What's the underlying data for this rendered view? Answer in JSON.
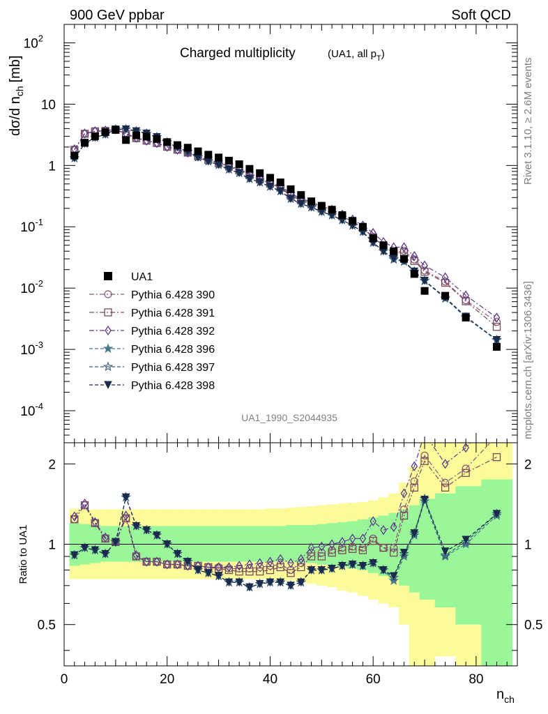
{
  "header": {
    "left": "900 GeV ppbar",
    "right": "Soft QCD"
  },
  "side_labels": {
    "top": "Rivet 3.1.10, ≥ 2.6M events",
    "bottom": "mcplots.cern.ch [arXiv:1306.3436]"
  },
  "colors": {
    "data": "#000000",
    "band_inner": "#99f799",
    "band_outer": "#fbfb99",
    "s390": "#8b5a7a",
    "s391": "#7a4a5a",
    "s392": "#5a3a8a",
    "s396": "#4a7a8a",
    "s397": "#3a5a7a",
    "s398": "#1a2a4a"
  },
  "chart_data": {
    "type": "scatter",
    "title_main": "Charged multiplicity",
    "title_sub": "(UA1, all p",
    "title_sub_subscript": "T",
    "title_sub_close": ")",
    "analysis": "UA1_1990_S2044935",
    "xlabel": "n",
    "xlabel_sub": "ch",
    "ylabel": "dσ/d n",
    "ylabel_sub": "ch",
    "ylabel_unit": "[mb]",
    "ratio_ylabel": "Ratio to UA1",
    "xlim": [
      0,
      88
    ],
    "ylim_main": [
      3e-05,
      200
    ],
    "ylim_ratio": [
      0.35,
      2.4
    ],
    "log_y_main": true,
    "log_y_ratio": true,
    "x_ticks": [
      "0",
      "20",
      "40",
      "60",
      "80"
    ],
    "main_tick_labels": [
      "10",
      "10",
      "10",
      "10",
      "1",
      "10",
      "10"
    ],
    "main_tick_exponents": [
      "-4",
      "-3",
      "-2",
      "-1",
      "",
      "",
      "2"
    ],
    "ratio_tick_labels": [
      "0.5",
      "1",
      "2"
    ],
    "legend_position": "middle-left",
    "x": [
      2,
      4,
      6,
      8,
      10,
      12,
      14,
      16,
      18,
      20,
      22,
      24,
      26,
      28,
      30,
      32,
      34,
      36,
      38,
      40,
      42,
      44,
      46,
      48,
      50,
      52,
      54,
      56,
      58,
      60,
      62,
      64,
      66,
      68,
      70,
      74,
      78,
      84
    ],
    "data": {
      "name": "UA1",
      "values": [
        1.45,
        2.35,
        3.0,
        3.5,
        3.8,
        2.6,
        3.1,
        2.95,
        2.7,
        2.4,
        2.15,
        1.95,
        1.7,
        1.5,
        1.35,
        1.2,
        1.05,
        0.88,
        0.75,
        0.63,
        0.53,
        0.41,
        0.33,
        0.26,
        0.22,
        0.19,
        0.155,
        0.125,
        0.1,
        0.065,
        0.05,
        0.04,
        0.03,
        0.017,
        0.009,
        0.0075,
        0.0033,
        0.0011
      ],
      "band_inner": [
        [
          0.83,
          1.2
        ],
        [
          0.84,
          1.19
        ],
        [
          0.85,
          1.18
        ],
        [
          0.86,
          1.17
        ],
        [
          0.86,
          1.17
        ],
        [
          0.86,
          1.17
        ],
        [
          0.86,
          1.17
        ],
        [
          0.86,
          1.17
        ],
        [
          0.86,
          1.17
        ],
        [
          0.86,
          1.17
        ],
        [
          0.86,
          1.17
        ],
        [
          0.86,
          1.17
        ],
        [
          0.86,
          1.17
        ],
        [
          0.86,
          1.17
        ],
        [
          0.86,
          1.17
        ],
        [
          0.86,
          1.17
        ],
        [
          0.86,
          1.17
        ],
        [
          0.86,
          1.17
        ],
        [
          0.86,
          1.17
        ],
        [
          0.86,
          1.17
        ],
        [
          0.86,
          1.17
        ],
        [
          0.86,
          1.18
        ],
        [
          0.85,
          1.18
        ],
        [
          0.85,
          1.18
        ],
        [
          0.84,
          1.19
        ],
        [
          0.83,
          1.2
        ],
        [
          0.82,
          1.21
        ],
        [
          0.81,
          1.22
        ],
        [
          0.8,
          1.24
        ],
        [
          0.78,
          1.26
        ],
        [
          0.76,
          1.28
        ],
        [
          0.74,
          1.31
        ],
        [
          0.7,
          1.35
        ],
        [
          0.66,
          1.4
        ],
        [
          0.62,
          1.48
        ],
        [
          0.58,
          1.55
        ],
        [
          0.5,
          1.65
        ],
        [
          0.35,
          1.75
        ]
      ],
      "band_outer": [
        [
          0.74,
          1.36
        ],
        [
          0.74,
          1.35
        ],
        [
          0.74,
          1.35
        ],
        [
          0.74,
          1.35
        ],
        [
          0.74,
          1.35
        ],
        [
          0.74,
          1.35
        ],
        [
          0.74,
          1.35
        ],
        [
          0.74,
          1.35
        ],
        [
          0.74,
          1.35
        ],
        [
          0.74,
          1.35
        ],
        [
          0.74,
          1.35
        ],
        [
          0.74,
          1.35
        ],
        [
          0.74,
          1.35
        ],
        [
          0.74,
          1.35
        ],
        [
          0.74,
          1.35
        ],
        [
          0.74,
          1.35
        ],
        [
          0.74,
          1.35
        ],
        [
          0.74,
          1.35
        ],
        [
          0.74,
          1.35
        ],
        [
          0.74,
          1.36
        ],
        [
          0.73,
          1.36
        ],
        [
          0.73,
          1.37
        ],
        [
          0.72,
          1.38
        ],
        [
          0.71,
          1.39
        ],
        [
          0.7,
          1.4
        ],
        [
          0.69,
          1.41
        ],
        [
          0.67,
          1.42
        ],
        [
          0.66,
          1.43
        ],
        [
          0.64,
          1.44
        ],
        [
          0.62,
          1.46
        ],
        [
          0.6,
          1.5
        ],
        [
          0.58,
          1.55
        ],
        [
          0.5,
          1.7
        ],
        [
          0.35,
          1.95
        ],
        [
          0.35,
          2.4
        ],
        [
          0.38,
          2.4
        ],
        [
          0.35,
          2.4
        ],
        [
          0.35,
          2.4
        ]
      ]
    },
    "series": [
      {
        "name": "Pythia 6.428 390",
        "marker": "circle",
        "dash": "dashdot",
        "color": "#8b5a7a",
        "ratio": [
          1.24,
          1.4,
          1.2,
          1.05,
          1.02,
          1.25,
          0.9,
          0.86,
          0.86,
          0.84,
          0.84,
          0.83,
          0.83,
          0.82,
          0.82,
          0.81,
          0.81,
          0.81,
          0.82,
          0.83,
          0.84,
          0.8,
          0.85,
          0.93,
          0.93,
          0.95,
          0.97,
          0.98,
          0.97,
          1.05,
          0.97,
          0.97,
          1.35,
          1.72,
          2.15,
          1.7,
          1.92,
          2.55
        ]
      },
      {
        "name": "Pythia 6.428 391",
        "marker": "square",
        "dash": "dashdot",
        "color": "#7a4a5a",
        "ratio": [
          1.24,
          1.4,
          1.2,
          1.05,
          1.02,
          1.25,
          0.9,
          0.86,
          0.86,
          0.84,
          0.84,
          0.83,
          0.83,
          0.82,
          0.81,
          0.8,
          0.79,
          0.79,
          0.79,
          0.8,
          0.82,
          0.78,
          0.82,
          0.9,
          0.9,
          0.93,
          0.95,
          0.96,
          0.95,
          1.03,
          0.97,
          0.93,
          1.28,
          1.63,
          2.05,
          1.63,
          1.85,
          2.12
        ]
      },
      {
        "name": "Pythia 6.428 392",
        "marker": "diamond",
        "dash": "dashdot",
        "color": "#5a3a8a",
        "ratio": [
          1.27,
          1.42,
          1.21,
          1.06,
          1.02,
          1.28,
          0.91,
          0.86,
          0.86,
          0.84,
          0.84,
          0.83,
          0.83,
          0.82,
          0.82,
          0.82,
          0.83,
          0.84,
          0.85,
          0.86,
          0.88,
          0.85,
          0.88,
          0.97,
          0.98,
          1.0,
          1.02,
          1.05,
          1.05,
          1.22,
          1.13,
          1.16,
          1.55,
          1.96,
          2.6,
          2.0,
          2.3,
          3.0
        ]
      },
      {
        "name": "Pythia 6.428 396",
        "marker": "star",
        "dash": "dashed",
        "color": "#4a7a8a",
        "ratio": [
          0.91,
          0.97,
          0.95,
          0.92,
          1.02,
          1.5,
          1.17,
          1.13,
          1.08,
          1.0,
          0.92,
          0.86,
          0.8,
          0.78,
          0.76,
          0.72,
          0.72,
          0.69,
          0.71,
          0.72,
          0.72,
          0.7,
          0.72,
          0.8,
          0.8,
          0.81,
          0.83,
          0.84,
          0.83,
          0.85,
          0.8,
          0.73,
          0.9,
          1.08,
          1.45,
          0.9,
          1.0,
          1.28
        ]
      },
      {
        "name": "Pythia 6.428 397",
        "marker": "star-open",
        "dash": "dashed",
        "color": "#3a5a7a",
        "ratio": [
          0.91,
          0.97,
          0.95,
          0.92,
          1.02,
          1.5,
          1.17,
          1.13,
          1.08,
          1.0,
          0.92,
          0.86,
          0.8,
          0.78,
          0.76,
          0.72,
          0.72,
          0.69,
          0.71,
          0.72,
          0.72,
          0.7,
          0.72,
          0.8,
          0.8,
          0.81,
          0.83,
          0.84,
          0.83,
          0.85,
          0.8,
          0.75,
          0.92,
          1.1,
          1.48,
          0.91,
          1.02,
          1.3
        ]
      },
      {
        "name": "Pythia 6.428 398",
        "marker": "triangle-down",
        "dash": "dashed",
        "color": "#1a2a4a",
        "ratio": [
          0.91,
          0.97,
          0.95,
          0.92,
          1.02,
          1.5,
          1.17,
          1.13,
          1.08,
          1.0,
          0.92,
          0.86,
          0.8,
          0.78,
          0.76,
          0.72,
          0.72,
          0.69,
          0.71,
          0.72,
          0.72,
          0.7,
          0.72,
          0.8,
          0.8,
          0.81,
          0.83,
          0.84,
          0.83,
          0.85,
          0.8,
          0.76,
          0.93,
          1.1,
          1.47,
          0.94,
          1.04,
          1.3
        ]
      }
    ]
  }
}
